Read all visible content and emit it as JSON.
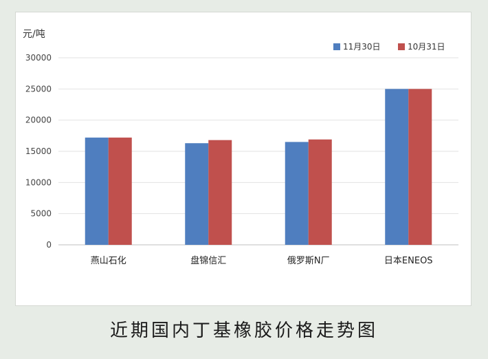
{
  "caption": "近期国内丁基橡胶价格走势图",
  "chart_data": {
    "type": "bar",
    "unit": "元/吨",
    "categories": [
      "燕山石化",
      "盘锦信汇",
      "俄罗斯N厂",
      "日本ENEOS"
    ],
    "series": [
      {
        "name": "11月30日",
        "color": "#4f7ebf",
        "values": [
          17200,
          16300,
          16500,
          25000
        ]
      },
      {
        "name": "10月31日",
        "color": "#c0504d",
        "values": [
          17200,
          16800,
          16900,
          25000
        ]
      }
    ],
    "ylim": [
      0,
      30000
    ],
    "yticks": [
      0,
      5000,
      10000,
      15000,
      20000,
      25000,
      30000
    ],
    "ytick_labels": [
      "0",
      "5000",
      "10000",
      "15000",
      "20000",
      "25000",
      "30000"
    ],
    "grid": true,
    "legend_position": "top-right"
  }
}
